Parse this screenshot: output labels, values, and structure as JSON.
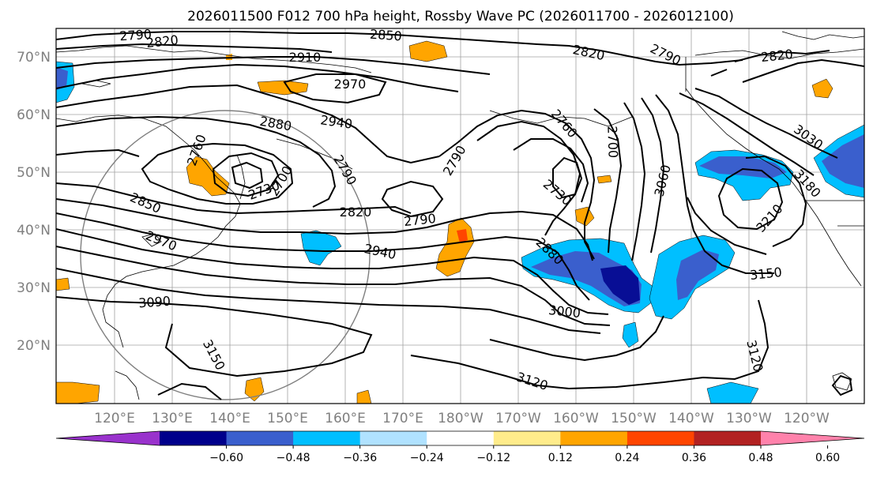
{
  "title": "2026011500 F012 700 hPa height, Rossby Wave PC (2026011700 - 2026012100)",
  "lat_labels": [
    "70°N",
    "60°N",
    "50°N",
    "40°N",
    "30°N",
    "20°N"
  ],
  "lon_labels": [
    "120°E",
    "130°E",
    "140°E",
    "150°E",
    "160°E",
    "170°E",
    "180°W",
    "170°W",
    "160°W",
    "150°W",
    "140°W",
    "130°W",
    "120°W"
  ],
  "colorbar": {
    "colors": [
      "#9932cc",
      "#00008b",
      "#3a5fcd",
      "#00bfff",
      "#b0e2ff",
      "#ffffff",
      "#ffec8b",
      "#ffa500",
      "#ff4500",
      "#b22222",
      "#ff82ab"
    ],
    "ticks": [
      "−0.60",
      "−0.48",
      "−0.36",
      "−0.24",
      "−0.12",
      "0.12",
      "0.24",
      "0.36",
      "0.48",
      "0.60"
    ]
  },
  "contour_labels": [
    "2790",
    "2820",
    "2850",
    "2910",
    "2970",
    "2880",
    "2940",
    "2760",
    "2730",
    "2700",
    "2850",
    "2790",
    "2970",
    "2820",
    "2790",
    "2940",
    "3090",
    "3150",
    "2820",
    "2790",
    "2760",
    "2730",
    "2880",
    "3000",
    "2700",
    "3060",
    "3030",
    "3180",
    "3210",
    "3150",
    "3120",
    "3120",
    "2790",
    "2820"
  ]
}
